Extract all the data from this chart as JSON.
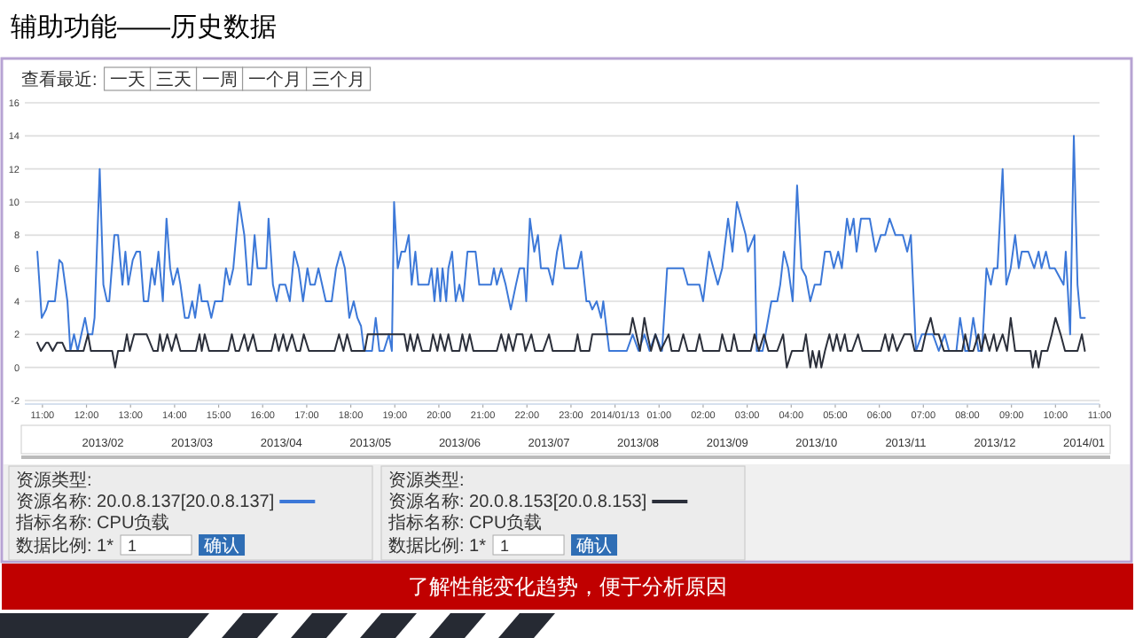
{
  "chart_data": {
    "type": "line",
    "title": "辅助功能——历史数据",
    "annotations": [
      "查看最近:",
      "一天",
      "三天",
      "一周",
      "一个月",
      "三个月",
      "2013/02",
      "2013/03",
      "2013/04",
      "2013/05",
      "2013/06",
      "2013/07",
      "2013/08",
      "2013/09",
      "2013/10",
      "2013/11",
      "2013/12",
      "2014/01",
      "资源类型:",
      "指标名称: CPU负载",
      "数据比例: 1*",
      "1",
      "确认",
      "资源类型:",
      "指标名称: CPU负载",
      "数据比例: 1*",
      "1",
      "确认",
      "了解性能变化趋势，便于分析原因"
    ],
    "xlim": [
      "2014-01-12T10:36",
      "2014-01-13T11:00"
    ],
    "xticks": [
      {
        "value": "2014-01-12T11:00",
        "label": "11:00"
      },
      {
        "value": "2014-01-12T12:00",
        "label": "12:00"
      },
      {
        "value": "2014-01-12T13:00",
        "label": "13:00"
      },
      {
        "value": "2014-01-12T14:00",
        "label": "14:00"
      },
      {
        "value": "2014-01-12T15:00",
        "label": "15:00"
      },
      {
        "value": "2014-01-12T16:00",
        "label": "16:00"
      },
      {
        "value": "2014-01-12T17:00",
        "label": "17:00"
      },
      {
        "value": "2014-01-12T18:00",
        "label": "18:00"
      },
      {
        "value": "2014-01-12T19:00",
        "label": "19:00"
      },
      {
        "value": "2014-01-12T20:00",
        "label": "20:00"
      },
      {
        "value": "2014-01-12T21:00",
        "label": "21:00"
      },
      {
        "value": "2014-01-12T22:00",
        "label": "22:00"
      },
      {
        "value": "2014-01-12T23:00",
        "label": "23:00"
      },
      {
        "value": "2014-01-13T00:00",
        "label": "2014/01/13"
      },
      {
        "value": "2014-01-13T01:00",
        "label": "01:00"
      },
      {
        "value": "2014-01-13T02:00",
        "label": "02:00"
      },
      {
        "value": "2014-01-13T03:00",
        "label": "03:00"
      },
      {
        "value": "2014-01-13T04:00",
        "label": "04:00"
      },
      {
        "value": "2014-01-13T05:00",
        "label": "05:00"
      },
      {
        "value": "2014-01-13T06:00",
        "label": "06:00"
      },
      {
        "value": "2014-01-13T07:00",
        "label": "07:00"
      },
      {
        "value": "2014-01-13T08:00",
        "label": "08:00"
      },
      {
        "value": "2014-01-13T09:00",
        "label": "09:00"
      },
      {
        "value": "2014-01-13T10:00",
        "label": "10:00"
      },
      {
        "value": "2014-01-13T11:00",
        "label": "11:00"
      }
    ],
    "ylim": [
      -2,
      16
    ],
    "yticks": [
      -2,
      0,
      2,
      4,
      6,
      8,
      10,
      12,
      14,
      16
    ],
    "grid": "y",
    "legend": "bottom left",
    "line_style": "solid",
    "series": [
      {
        "name": "资源名称: 20.0.8.137[20.0.8.137]",
        "color": "#3c78d8",
        "x": [
          "2014-01-12T10:53",
          "2014-01-12T10:59",
          "2014-01-12T11:05",
          "2014-01-12T11:08",
          "2014-01-12T11:17",
          "2014-01-12T11:23",
          "2014-01-12T11:27",
          "2014-01-12T11:34",
          "2014-01-12T11:38",
          "2014-01-12T11:43",
          "2014-01-12T11:48",
          "2014-01-12T11:58",
          "2014-01-12T12:02",
          "2014-01-12T12:08",
          "2014-01-12T12:11",
          "2014-01-12T12:18",
          "2014-01-12T12:23",
          "2014-01-12T12:28",
          "2014-01-12T12:31",
          "2014-01-12T12:38",
          "2014-01-12T12:43",
          "2014-01-12T12:49",
          "2014-01-12T12:53",
          "2014-01-12T12:57",
          "2014-01-12T13:03",
          "2014-01-12T13:08",
          "2014-01-12T13:13",
          "2014-01-12T13:18",
          "2014-01-12T13:24",
          "2014-01-12T13:29",
          "2014-01-12T13:33",
          "2014-01-12T13:38",
          "2014-01-12T13:44",
          "2014-01-12T13:49",
          "2014-01-12T13:54",
          "2014-01-12T13:58",
          "2014-01-12T14:04",
          "2014-01-12T14:08",
          "2014-01-12T14:14",
          "2014-01-12T14:19",
          "2014-01-12T14:24",
          "2014-01-12T14:28",
          "2014-01-12T14:34",
          "2014-01-12T14:37",
          "2014-01-12T14:45",
          "2014-01-12T14:50",
          "2014-01-12T14:55",
          "2014-01-12T15:05",
          "2014-01-12T15:10",
          "2014-01-12T15:15",
          "2014-01-12T15:20",
          "2014-01-12T15:28",
          "2014-01-12T15:35",
          "2014-01-12T15:40",
          "2014-01-12T15:44",
          "2014-01-12T15:49",
          "2014-01-12T15:53",
          "2014-01-12T16:05",
          "2014-01-12T16:08",
          "2014-01-12T16:14",
          "2014-01-12T16:19",
          "2014-01-12T16:23",
          "2014-01-12T16:31",
          "2014-01-12T16:37",
          "2014-01-12T16:43",
          "2014-01-12T16:49",
          "2014-01-12T16:55",
          "2014-01-12T17:01",
          "2014-01-12T17:05",
          "2014-01-12T17:11",
          "2014-01-12T17:16",
          "2014-01-12T17:21",
          "2014-01-12T17:26",
          "2014-01-12T17:34",
          "2014-01-12T17:40",
          "2014-01-12T17:46",
          "2014-01-12T17:52",
          "2014-01-12T17:58",
          "2014-01-12T18:04",
          "2014-01-12T18:09",
          "2014-01-12T18:14",
          "2014-01-12T18:18",
          "2014-01-12T18:29",
          "2014-01-12T18:34",
          "2014-01-12T18:39",
          "2014-01-12T18:45",
          "2014-01-12T18:52",
          "2014-01-12T18:56",
          "2014-01-12T18:59",
          "2014-01-12T19:04",
          "2014-01-12T19:09",
          "2014-01-12T19:14",
          "2014-01-12T19:19",
          "2014-01-12T19:23",
          "2014-01-12T19:28",
          "2014-01-12T19:32",
          "2014-01-12T19:46",
          "2014-01-12T19:50",
          "2014-01-12T19:54",
          "2014-01-12T19:58",
          "2014-01-12T20:02",
          "2014-01-12T20:05",
          "2014-01-12T20:10",
          "2014-01-12T20:13",
          "2014-01-12T20:18",
          "2014-01-12T20:23",
          "2014-01-12T20:28",
          "2014-01-12T20:33",
          "2014-01-12T20:39",
          "2014-01-12T20:50",
          "2014-01-12T20:55",
          "2014-01-12T21:11",
          "2014-01-12T21:15",
          "2014-01-12T21:19",
          "2014-01-12T21:25",
          "2014-01-12T21:31",
          "2014-01-12T21:38",
          "2014-01-12T21:45",
          "2014-01-12T21:50",
          "2014-01-12T21:56",
          "2014-01-12T21:59",
          "2014-01-12T22:04",
          "2014-01-12T22:10",
          "2014-01-12T22:15",
          "2014-01-12T22:19",
          "2014-01-12T22:29",
          "2014-01-12T22:35",
          "2014-01-12T22:41",
          "2014-01-12T22:46",
          "2014-01-12T22:51",
          "2014-01-12T23:09",
          "2014-01-12T23:14",
          "2014-01-12T23:21",
          "2014-01-12T23:25",
          "2014-01-12T23:29",
          "2014-01-12T23:35",
          "2014-01-12T23:41",
          "2014-01-12T23:44",
          "2014-01-12T23:52",
          "2014-01-13T00:08",
          "2014-01-13T00:16",
          "2014-01-13T00:24",
          "2014-01-13T00:32",
          "2014-01-13T00:40",
          "2014-01-13T00:47",
          "2014-01-13T00:55",
          "2014-01-13T01:04",
          "2014-01-13T01:11",
          "2014-01-13T01:33",
          "2014-01-13T01:39",
          "2014-01-13T01:55",
          "2014-01-13T02:00",
          "2014-01-13T02:08",
          "2014-01-13T02:14",
          "2014-01-13T02:20",
          "2014-01-13T02:26",
          "2014-01-13T02:34",
          "2014-01-13T02:40",
          "2014-01-13T02:46",
          "2014-01-13T02:52",
          "2014-01-13T02:58",
          "2014-01-13T03:01",
          "2014-01-13T03:10",
          "2014-01-13T03:13",
          "2014-01-13T03:21",
          "2014-01-13T03:33",
          "2014-01-13T03:41",
          "2014-01-13T03:45",
          "2014-01-13T03:50",
          "2014-01-13T03:56",
          "2014-01-13T04:02",
          "2014-01-13T04:08",
          "2014-01-13T04:14",
          "2014-01-13T04:20",
          "2014-01-13T04:26",
          "2014-01-13T04:32",
          "2014-01-13T04:40",
          "2014-01-13T04:46",
          "2014-01-13T04:53",
          "2014-01-13T04:58",
          "2014-01-13T05:04",
          "2014-01-13T05:09",
          "2014-01-13T05:16",
          "2014-01-13T05:20",
          "2014-01-13T05:25",
          "2014-01-13T05:29",
          "2014-01-13T05:35",
          "2014-01-13T05:47",
          "2014-01-13T05:55",
          "2014-01-13T06:02",
          "2014-01-13T06:08",
          "2014-01-13T06:14",
          "2014-01-13T06:22",
          "2014-01-13T06:32",
          "2014-01-13T06:38",
          "2014-01-13T06:43",
          "2014-01-13T06:50",
          "2014-01-13T06:58",
          "2014-01-13T07:13",
          "2014-01-13T07:21",
          "2014-01-13T07:29",
          "2014-01-13T07:35",
          "2014-01-13T07:45",
          "2014-01-13T07:50",
          "2014-01-13T07:57",
          "2014-01-13T08:02",
          "2014-01-13T08:08",
          "2014-01-13T08:15",
          "2014-01-13T08:20",
          "2014-01-13T08:26",
          "2014-01-13T08:32",
          "2014-01-13T08:36",
          "2014-01-13T08:41",
          "2014-01-13T08:48",
          "2014-01-13T08:53",
          "2014-01-13T08:59",
          "2014-01-13T09:05",
          "2014-01-13T09:10",
          "2014-01-13T09:14",
          "2014-01-13T09:23",
          "2014-01-13T09:31",
          "2014-01-13T09:37",
          "2014-01-13T09:41",
          "2014-01-13T09:47",
          "2014-01-13T09:52",
          "2014-01-13T09:59",
          "2014-01-13T10:05",
          "2014-01-13T10:11",
          "2014-01-13T10:14",
          "2014-01-13T10:20",
          "2014-01-13T10:25",
          "2014-01-13T10:30",
          "2014-01-13T10:34",
          "2014-01-13T10:40"
        ],
        "values": [
          7,
          3,
          3.5,
          4,
          4,
          6.5,
          6.3,
          4,
          1,
          2,
          1,
          3,
          2,
          2,
          3,
          12,
          5,
          4,
          4,
          8,
          8,
          5,
          7,
          5,
          6.5,
          7,
          7,
          4,
          4,
          6,
          5,
          7,
          4,
          9,
          6,
          5,
          6,
          5,
          3,
          3,
          4,
          3,
          5,
          4,
          4,
          3,
          4,
          4,
          6,
          5,
          6,
          10,
          8,
          5,
          5,
          8,
          6,
          6,
          9,
          5,
          4,
          5,
          5,
          4,
          7,
          6,
          4,
          6,
          5,
          5,
          6,
          5,
          4,
          4,
          6,
          7,
          6,
          3,
          4,
          3,
          2.5,
          1,
          1,
          3,
          1,
          1,
          2,
          1,
          10,
          6,
          7,
          7,
          8,
          5,
          7,
          5,
          5,
          6,
          4,
          6,
          4,
          6,
          4,
          6,
          7,
          4,
          5,
          4,
          7,
          7,
          5,
          5,
          6,
          5,
          6,
          5,
          3.5,
          5,
          6,
          6,
          4,
          9,
          7,
          8,
          6,
          6,
          5,
          7,
          8,
          6,
          6,
          7,
          4,
          4,
          3.5,
          4,
          3,
          4,
          1,
          1,
          1,
          2,
          1,
          2,
          1,
          2,
          1,
          6,
          6,
          5,
          5,
          4,
          7,
          6,
          5,
          6,
          9,
          7,
          10,
          9,
          8,
          7,
          8,
          1,
          1,
          4,
          4,
          5,
          7,
          6,
          4,
          11,
          6,
          5.5,
          4,
          5,
          5,
          7,
          7,
          6,
          7,
          6,
          9,
          8,
          9,
          7,
          9,
          9,
          7,
          8,
          8,
          9,
          8,
          8,
          7,
          8,
          1,
          2,
          2,
          1,
          2,
          1,
          1,
          3,
          1,
          1,
          3,
          1,
          1,
          6,
          5,
          6,
          6,
          12,
          5,
          6,
          8,
          6,
          7,
          7,
          6,
          7,
          6,
          7,
          6,
          6,
          5.5,
          5,
          7,
          2,
          14,
          5,
          3,
          3
        ]
      },
      {
        "name": "资源名称: 20.0.8.153[20.0.8.153]",
        "color": "#2b2f3a",
        "x": [
          "2014-01-12T10:53",
          "2014-01-12T10:58",
          "2014-01-12T11:05",
          "2014-01-12T11:08",
          "2014-01-12T11:14",
          "2014-01-12T11:20",
          "2014-01-12T11:27",
          "2014-01-12T11:32",
          "2014-01-12T11:56",
          "2014-01-12T12:02",
          "2014-01-12T12:06",
          "2014-01-12T12:35",
          "2014-01-12T12:39",
          "2014-01-12T12:43",
          "2014-01-12T12:51",
          "2014-01-12T12:55",
          "2014-01-12T12:59",
          "2014-01-12T13:05",
          "2014-01-12T13:22",
          "2014-01-12T13:31",
          "2014-01-12T13:37",
          "2014-01-12T13:40",
          "2014-01-12T13:44",
          "2014-01-12T13:50",
          "2014-01-12T13:56",
          "2014-01-12T14:02",
          "2014-01-12T14:08",
          "2014-01-12T14:29",
          "2014-01-12T14:34",
          "2014-01-12T14:37",
          "2014-01-12T14:41",
          "2014-01-12T14:47",
          "2014-01-12T15:13",
          "2014-01-12T15:18",
          "2014-01-12T15:23",
          "2014-01-12T15:28",
          "2014-01-12T15:35",
          "2014-01-12T15:40",
          "2014-01-12T15:47",
          "2014-01-12T15:52",
          "2014-01-12T16:12",
          "2014-01-12T16:17",
          "2014-01-12T16:22",
          "2014-01-12T16:28",
          "2014-01-12T16:33",
          "2014-01-12T16:40",
          "2014-01-12T16:46",
          "2014-01-12T16:51",
          "2014-01-12T16:56",
          "2014-01-12T17:03",
          "2014-01-12T17:38",
          "2014-01-12T17:44",
          "2014-01-12T17:50",
          "2014-01-12T17:55",
          "2014-01-12T18:01",
          "2014-01-12T18:19",
          "2014-01-12T18:23",
          "2014-01-12T19:01",
          "2014-01-12T19:13",
          "2014-01-12T19:17",
          "2014-01-12T19:21",
          "2014-01-12T19:26",
          "2014-01-12T19:31",
          "2014-01-12T19:37",
          "2014-01-12T19:48",
          "2014-01-12T19:52",
          "2014-01-12T19:58",
          "2014-01-12T20:02",
          "2014-01-12T20:08",
          "2014-01-12T20:13",
          "2014-01-12T20:18",
          "2014-01-12T20:28",
          "2014-01-12T20:32",
          "2014-01-12T20:37",
          "2014-01-12T20:42",
          "2014-01-12T20:47",
          "2014-01-12T21:19",
          "2014-01-12T21:25",
          "2014-01-12T21:31",
          "2014-01-12T21:35",
          "2014-01-12T21:41",
          "2014-01-12T21:46",
          "2014-01-12T21:54",
          "2014-01-12T21:58",
          "2014-01-12T22:06",
          "2014-01-12T22:11",
          "2014-01-12T22:22",
          "2014-01-12T22:30",
          "2014-01-12T22:35",
          "2014-01-12T22:41",
          "2014-01-12T23:05",
          "2014-01-12T23:09",
          "2014-01-12T23:13",
          "2014-01-12T23:25",
          "2014-01-12T23:29",
          "2014-01-13T00:20",
          "2014-01-13T00:24",
          "2014-01-13T00:29",
          "2014-01-13T00:34",
          "2014-01-13T00:40",
          "2014-01-13T00:44",
          "2014-01-13T00:49",
          "2014-01-13T00:55",
          "2014-01-13T01:02",
          "2014-01-13T01:13",
          "2014-01-13T01:17",
          "2014-01-13T01:27",
          "2014-01-13T01:33",
          "2014-01-13T01:39",
          "2014-01-13T01:50",
          "2014-01-13T01:55",
          "2014-01-13T02:00",
          "2014-01-13T02:22",
          "2014-01-13T02:26",
          "2014-01-13T02:32",
          "2014-01-13T02:38",
          "2014-01-13T02:42",
          "2014-01-13T02:47",
          "2014-01-13T03:05",
          "2014-01-13T03:10",
          "2014-01-13T03:16",
          "2014-01-13T03:23",
          "2014-01-13T03:29",
          "2014-01-13T03:41",
          "2014-01-13T03:49",
          "2014-01-13T03:54",
          "2014-01-13T04:01",
          "2014-01-13T04:16",
          "2014-01-13T04:20",
          "2014-01-13T04:26",
          "2014-01-13T04:29",
          "2014-01-13T04:34",
          "2014-01-13T04:38",
          "2014-01-13T04:41",
          "2014-01-13T04:46",
          "2014-01-13T04:52",
          "2014-01-13T04:57",
          "2014-01-13T05:02",
          "2014-01-13T05:07",
          "2014-01-13T05:13",
          "2014-01-13T05:17",
          "2014-01-13T05:23",
          "2014-01-13T05:31",
          "2014-01-13T05:37",
          "2014-01-13T06:02",
          "2014-01-13T06:08",
          "2014-01-13T06:13",
          "2014-01-13T06:18",
          "2014-01-13T06:24",
          "2014-01-13T06:34",
          "2014-01-13T06:43",
          "2014-01-13T06:48",
          "2014-01-13T06:58",
          "2014-01-13T07:03",
          "2014-01-13T07:10",
          "2014-01-13T07:15",
          "2014-01-13T07:21",
          "2014-01-13T07:28",
          "2014-01-13T07:53",
          "2014-01-13T07:57",
          "2014-01-13T08:02",
          "2014-01-13T08:08",
          "2014-01-13T08:15",
          "2014-01-13T08:19",
          "2014-01-13T08:24",
          "2014-01-13T08:30",
          "2014-01-13T08:36",
          "2014-01-13T08:40",
          "2014-01-13T08:48",
          "2014-01-13T08:54",
          "2014-01-13T08:59",
          "2014-01-13T09:05",
          "2014-01-13T09:26",
          "2014-01-13T09:29",
          "2014-01-13T09:33",
          "2014-01-13T09:37",
          "2014-01-13T09:41",
          "2014-01-13T09:49",
          "2014-01-13T09:55",
          "2014-01-13T10:00",
          "2014-01-13T10:07",
          "2014-01-13T10:13",
          "2014-01-13T10:30",
          "2014-01-13T10:36",
          "2014-01-13T10:40"
        ],
        "values": [
          1.5,
          1,
          1.5,
          1.5,
          1,
          1.5,
          1.5,
          1,
          1,
          2,
          1,
          1,
          0,
          1,
          1,
          2,
          1,
          2,
          2,
          1,
          1,
          2,
          1,
          2,
          1,
          2,
          1,
          1,
          2,
          1,
          2,
          1,
          1,
          2,
          1,
          1,
          2,
          1,
          2,
          1,
          1,
          2,
          1,
          2,
          1,
          2,
          1,
          1,
          2,
          1,
          1,
          2,
          1,
          2,
          1,
          1,
          2,
          2,
          2,
          1,
          2,
          1,
          2,
          1,
          1,
          2,
          1,
          2,
          1,
          2,
          1,
          1,
          2,
          1,
          2,
          1,
          1,
          2,
          1,
          2,
          1,
          2,
          2,
          1,
          2,
          1,
          1,
          2,
          1,
          1,
          1,
          2,
          1,
          1,
          2,
          2,
          3,
          2,
          1,
          3,
          2,
          1,
          2,
          1,
          2,
          1,
          1,
          2,
          1,
          1,
          2,
          1,
          1,
          2,
          1,
          1,
          2,
          1,
          1,
          2,
          1,
          2,
          1,
          1,
          2,
          0,
          1,
          1,
          2,
          0,
          1,
          0,
          1,
          0,
          1,
          2,
          1,
          2,
          1,
          2,
          1,
          1,
          2,
          1,
          1,
          2,
          1,
          2,
          1,
          2,
          2,
          1,
          1,
          2,
          3,
          2,
          2,
          1,
          1,
          2,
          1,
          1,
          2,
          1,
          2,
          1,
          2,
          1,
          2,
          1,
          3,
          1,
          1,
          0,
          1,
          0,
          1,
          1,
          2,
          3,
          2,
          1,
          1,
          2,
          1
        ]
      }
    ]
  }
}
